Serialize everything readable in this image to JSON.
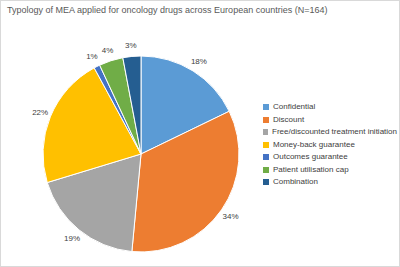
{
  "chart_data": {
    "type": "pie",
    "title": "Typology of MEA applied for oncology drugs across European countries (N=164)",
    "categories": [
      "Confidential",
      "Discount",
      "Free/discounted treatment initiation",
      "Money-back guarantee",
      "Outcomes guarantee",
      "Patient utilisation cap",
      "Combination"
    ],
    "values": [
      18,
      34,
      19,
      22,
      1,
      4,
      3
    ],
    "value_labels": [
      "18%",
      "34%",
      "19%",
      "22%",
      "1%",
      "4%",
      "3%"
    ],
    "colors": [
      "#5b9bd5",
      "#ed7d31",
      "#a5a5a5",
      "#ffc000",
      "#4472c4",
      "#70ad47",
      "#255e91"
    ],
    "data_labels": true,
    "legend": "right"
  }
}
